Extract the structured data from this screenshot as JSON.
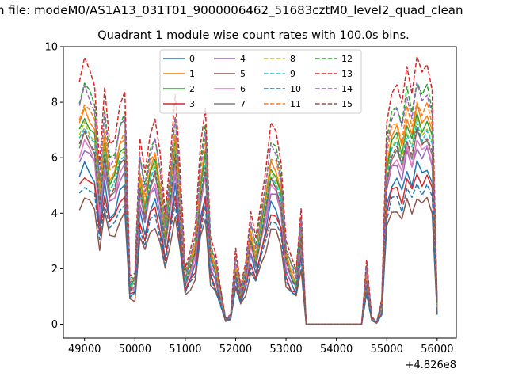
{
  "suptitle": "n file: modeM0/AS1A13_031T01_9000006462_51683cztM0_level2_quad_clean",
  "chart_data": {
    "type": "line",
    "title": "Quadrant 1 module wise count rates with 100.0s bins.",
    "xlabel": "",
    "ylabel": "",
    "x_offset_label": "+4.826e8",
    "xlim": [
      48580,
      56380
    ],
    "ylim": [
      -0.5,
      10
    ],
    "xticks": [
      "49000",
      "50000",
      "51000",
      "52000",
      "53000",
      "54000",
      "55000",
      "56000"
    ],
    "xtick_values": [
      49000,
      50000,
      51000,
      52000,
      53000,
      54000,
      55000,
      56000
    ],
    "yticks": [
      "0",
      "2",
      "4",
      "6",
      "8",
      "10"
    ],
    "ytick_values": [
      0,
      2,
      4,
      6,
      8,
      10
    ],
    "legend_position": "upper center",
    "x": [
      48900,
      49000,
      49100,
      49200,
      49300,
      49400,
      49500,
      49600,
      49700,
      49800,
      49900,
      50000,
      50100,
      50200,
      50300,
      50400,
      50500,
      50600,
      50700,
      50800,
      50900,
      51000,
      51100,
      51200,
      51300,
      51400,
      51500,
      51600,
      51700,
      51800,
      51900,
      52000,
      52100,
      52200,
      52300,
      52400,
      52500,
      52600,
      52700,
      52800,
      52900,
      53000,
      53100,
      53200,
      53300,
      53400,
      53500,
      53600,
      53700,
      53800,
      53900,
      54000,
      54100,
      54200,
      54300,
      54400,
      54500,
      54600,
      54700,
      54800,
      54900,
      55000,
      55100,
      55200,
      55300,
      55400,
      55500,
      55600,
      55700,
      55800,
      55900,
      56000
    ],
    "base": [
      6.4,
      6.9,
      6.6,
      6.3,
      4.2,
      6.1,
      4.7,
      4.9,
      5.7,
      6.0,
      1.3,
      1.4,
      4.8,
      3.9,
      5.0,
      5.4,
      4.4,
      2.9,
      4.4,
      6.0,
      3.9,
      1.5,
      2.0,
      2.5,
      4.6,
      5.7,
      2.3,
      1.8,
      0.9,
      0.15,
      0.25,
      1.9,
      1.0,
      1.7,
      2.9,
      2.2,
      3.2,
      4.1,
      5.2,
      5.0,
      4.3,
      2.2,
      1.7,
      1.4,
      3.1,
      0.0,
      0.0,
      0.0,
      0.0,
      0.0,
      0.0,
      0.0,
      0.0,
      0.0,
      0.0,
      0.0,
      0.0,
      1.6,
      0.2,
      0.05,
      0.6,
      5.2,
      6.1,
      6.3,
      5.7,
      6.7,
      6.1,
      7.0,
      6.5,
      6.8,
      6.2,
      0.6
    ],
    "series": [
      {
        "name": "0",
        "color": "#1f77b4",
        "dash": false,
        "scale": 0.83
      },
      {
        "name": "1",
        "color": "#ff7f0e",
        "dash": false,
        "scale": 1.12
      },
      {
        "name": "2",
        "color": "#2ca02c",
        "dash": false,
        "scale": 1.08
      },
      {
        "name": "3",
        "color": "#d62728",
        "dash": false,
        "scale": 0.78
      },
      {
        "name": "4",
        "color": "#9467bd",
        "dash": false,
        "scale": 0.92
      },
      {
        "name": "5",
        "color": "#8c564b",
        "dash": false,
        "scale": 0.66
      },
      {
        "name": "6",
        "color": "#e377c2",
        "dash": false,
        "scale": 0.95
      },
      {
        "name": "7",
        "color": "#7f7f7f",
        "dash": false,
        "scale": 0.99
      },
      {
        "name": "8",
        "color": "#bcbd22",
        "dash": true,
        "scale": 1.05
      },
      {
        "name": "9",
        "color": "#17becf",
        "dash": true,
        "scale": 1.03
      },
      {
        "name": "10",
        "color": "#1f77b4",
        "dash": true,
        "scale": 0.73
      },
      {
        "name": "11",
        "color": "#ff7f0e",
        "dash": true,
        "scale": 1.16
      },
      {
        "name": "12",
        "color": "#2ca02c",
        "dash": true,
        "scale": 1.26
      },
      {
        "name": "13",
        "color": "#d62728",
        "dash": true,
        "scale": 1.38
      },
      {
        "name": "14",
        "color": "#9467bd",
        "dash": true,
        "scale": 1.23
      },
      {
        "name": "15",
        "color": "#8c564b",
        "dash": true,
        "scale": 1.0
      }
    ]
  }
}
